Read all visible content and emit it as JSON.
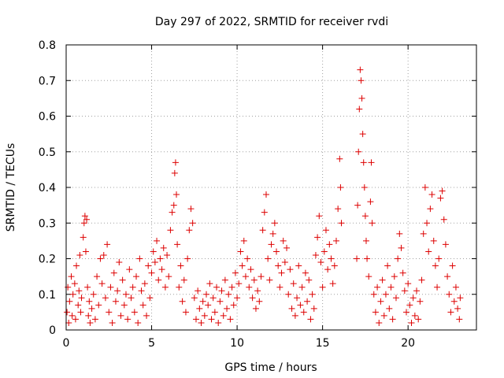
{
  "chart_data": {
    "type": "scatter",
    "title": "Day 297 of 2022, SRMTID for receiver rvdi",
    "xlabel": "GPS time / hours",
    "ylabel": "SRMTID / TECUs",
    "xlim": [
      0,
      24
    ],
    "ylim": [
      0,
      0.8
    ],
    "x_ticks": [
      0,
      5,
      10,
      15,
      20
    ],
    "x_tick_labels": [
      "0",
      "5",
      "10",
      "15",
      "20"
    ],
    "y_ticks": [
      0,
      0.1,
      0.2,
      0.3,
      0.4,
      0.5,
      0.6,
      0.7,
      0.8
    ],
    "y_tick_labels": [
      "0",
      "0.1",
      "0.2",
      "0.3",
      "0.4",
      "0.5",
      "0.6",
      "0.7",
      "0.8"
    ],
    "grid": true,
    "marker": "+",
    "marker_color": "#dd0000",
    "series": [
      {
        "name": "SRMTID",
        "points": [
          [
            0.05,
            0.05
          ],
          [
            0.1,
            0.12
          ],
          [
            0.15,
            0.02
          ],
          [
            0.2,
            0.08
          ],
          [
            0.3,
            0.15
          ],
          [
            0.35,
            0.04
          ],
          [
            0.4,
            0.1
          ],
          [
            0.5,
            0.13
          ],
          [
            0.55,
            0.03
          ],
          [
            0.6,
            0.18
          ],
          [
            0.7,
            0.07
          ],
          [
            0.75,
            0.11
          ],
          [
            0.8,
            0.21
          ],
          [
            0.85,
            0.05
          ],
          [
            0.9,
            0.09
          ],
          [
            1.0,
            0.26
          ],
          [
            1.05,
            0.3
          ],
          [
            1.1,
            0.32
          ],
          [
            1.15,
            0.22
          ],
          [
            1.2,
            0.31
          ],
          [
            1.25,
            0.12
          ],
          [
            1.3,
            0.04
          ],
          [
            1.35,
            0.08
          ],
          [
            1.4,
            0.02
          ],
          [
            1.5,
            0.06
          ],
          [
            1.6,
            0.1
          ],
          [
            1.7,
            0.03
          ],
          [
            1.8,
            0.15
          ],
          [
            1.9,
            0.07
          ],
          [
            2.0,
            0.2
          ],
          [
            2.1,
            0.13
          ],
          [
            2.2,
            0.21
          ],
          [
            2.3,
            0.09
          ],
          [
            2.4,
            0.24
          ],
          [
            2.5,
            0.05
          ],
          [
            2.6,
            0.12
          ],
          [
            2.7,
            0.02
          ],
          [
            2.8,
            0.16
          ],
          [
            2.9,
            0.08
          ],
          [
            3.0,
            0.11
          ],
          [
            3.1,
            0.19
          ],
          [
            3.2,
            0.04
          ],
          [
            3.3,
            0.14
          ],
          [
            3.4,
            0.07
          ],
          [
            3.5,
            0.1
          ],
          [
            3.6,
            0.03
          ],
          [
            3.7,
            0.17
          ],
          [
            3.8,
            0.09
          ],
          [
            3.9,
            0.12
          ],
          [
            4.0,
            0.05
          ],
          [
            4.1,
            0.15
          ],
          [
            4.2,
            0.02
          ],
          [
            4.3,
            0.2
          ],
          [
            4.4,
            0.11
          ],
          [
            4.5,
            0.07
          ],
          [
            4.6,
            0.13
          ],
          [
            4.7,
            0.04
          ],
          [
            4.8,
            0.18
          ],
          [
            4.9,
            0.09
          ],
          [
            5.0,
            0.16
          ],
          [
            5.1,
            0.22
          ],
          [
            5.2,
            0.19
          ],
          [
            5.3,
            0.25
          ],
          [
            5.4,
            0.14
          ],
          [
            5.5,
            0.2
          ],
          [
            5.6,
            0.17
          ],
          [
            5.7,
            0.23
          ],
          [
            5.8,
            0.12
          ],
          [
            5.9,
            0.21
          ],
          [
            6.0,
            0.15
          ],
          [
            6.1,
            0.28
          ],
          [
            6.2,
            0.33
          ],
          [
            6.3,
            0.35
          ],
          [
            6.35,
            0.44
          ],
          [
            6.4,
            0.47
          ],
          [
            6.45,
            0.38
          ],
          [
            6.5,
            0.24
          ],
          [
            6.6,
            0.12
          ],
          [
            6.7,
            0.18
          ],
          [
            6.8,
            0.08
          ],
          [
            6.9,
            0.14
          ],
          [
            7.0,
            0.05
          ],
          [
            7.1,
            0.2
          ],
          [
            7.2,
            0.28
          ],
          [
            7.3,
            0.34
          ],
          [
            7.4,
            0.3
          ],
          [
            7.5,
            0.09
          ],
          [
            7.6,
            0.03
          ],
          [
            7.7,
            0.11
          ],
          [
            7.8,
            0.06
          ],
          [
            7.9,
            0.02
          ],
          [
            8.0,
            0.08
          ],
          [
            8.1,
            0.04
          ],
          [
            8.2,
            0.1
          ],
          [
            8.3,
            0.07
          ],
          [
            8.4,
            0.13
          ],
          [
            8.5,
            0.03
          ],
          [
            8.6,
            0.09
          ],
          [
            8.7,
            0.05
          ],
          [
            8.8,
            0.12
          ],
          [
            8.9,
            0.02
          ],
          [
            9.0,
            0.08
          ],
          [
            9.1,
            0.11
          ],
          [
            9.2,
            0.04
          ],
          [
            9.3,
            0.14
          ],
          [
            9.4,
            0.06
          ],
          [
            9.5,
            0.1
          ],
          [
            9.6,
            0.03
          ],
          [
            9.7,
            0.12
          ],
          [
            9.8,
            0.07
          ],
          [
            9.9,
            0.16
          ],
          [
            10.0,
            0.09
          ],
          [
            10.1,
            0.13
          ],
          [
            10.2,
            0.22
          ],
          [
            10.3,
            0.18
          ],
          [
            10.4,
            0.25
          ],
          [
            10.5,
            0.15
          ],
          [
            10.6,
            0.2
          ],
          [
            10.7,
            0.12
          ],
          [
            10.8,
            0.17
          ],
          [
            10.9,
            0.09
          ],
          [
            11.0,
            0.14
          ],
          [
            11.1,
            0.06
          ],
          [
            11.2,
            0.11
          ],
          [
            11.3,
            0.08
          ],
          [
            11.4,
            0.15
          ],
          [
            11.5,
            0.28
          ],
          [
            11.6,
            0.33
          ],
          [
            11.7,
            0.38
          ],
          [
            11.8,
            0.2
          ],
          [
            11.9,
            0.14
          ],
          [
            12.0,
            0.24
          ],
          [
            12.1,
            0.27
          ],
          [
            12.2,
            0.3
          ],
          [
            12.3,
            0.22
          ],
          [
            12.4,
            0.18
          ],
          [
            12.5,
            0.12
          ],
          [
            12.6,
            0.16
          ],
          [
            12.7,
            0.25
          ],
          [
            12.8,
            0.19
          ],
          [
            12.9,
            0.23
          ],
          [
            13.0,
            0.1
          ],
          [
            13.1,
            0.17
          ],
          [
            13.2,
            0.06
          ],
          [
            13.3,
            0.13
          ],
          [
            13.4,
            0.04
          ],
          [
            13.5,
            0.09
          ],
          [
            13.6,
            0.18
          ],
          [
            13.7,
            0.07
          ],
          [
            13.8,
            0.12
          ],
          [
            13.9,
            0.05
          ],
          [
            14.0,
            0.16
          ],
          [
            14.1,
            0.08
          ],
          [
            14.2,
            0.14
          ],
          [
            14.3,
            0.03
          ],
          [
            14.4,
            0.1
          ],
          [
            14.5,
            0.06
          ],
          [
            14.6,
            0.21
          ],
          [
            14.7,
            0.26
          ],
          [
            14.8,
            0.32
          ],
          [
            14.9,
            0.19
          ],
          [
            15.0,
            0.12
          ],
          [
            15.1,
            0.22
          ],
          [
            15.2,
            0.28
          ],
          [
            15.3,
            0.17
          ],
          [
            15.4,
            0.24
          ],
          [
            15.5,
            0.2
          ],
          [
            15.6,
            0.13
          ],
          [
            15.7,
            0.18
          ],
          [
            15.8,
            0.25
          ],
          [
            15.9,
            0.34
          ],
          [
            16.0,
            0.48
          ],
          [
            16.05,
            0.4
          ],
          [
            16.1,
            0.3
          ],
          [
            17.0,
            0.2
          ],
          [
            17.05,
            0.35
          ],
          [
            17.1,
            0.5
          ],
          [
            17.15,
            0.62
          ],
          [
            17.2,
            0.73
          ],
          [
            17.25,
            0.7
          ],
          [
            17.3,
            0.65
          ],
          [
            17.35,
            0.55
          ],
          [
            17.4,
            0.47
          ],
          [
            17.45,
            0.4
          ],
          [
            17.5,
            0.32
          ],
          [
            17.55,
            0.25
          ],
          [
            17.6,
            0.2
          ],
          [
            17.7,
            0.15
          ],
          [
            17.8,
            0.36
          ],
          [
            17.85,
            0.47
          ],
          [
            17.9,
            0.3
          ],
          [
            18.0,
            0.1
          ],
          [
            18.1,
            0.05
          ],
          [
            18.2,
            0.12
          ],
          [
            18.3,
            0.02
          ],
          [
            18.4,
            0.08
          ],
          [
            18.5,
            0.14
          ],
          [
            18.6,
            0.04
          ],
          [
            18.7,
            0.1
          ],
          [
            18.8,
            0.18
          ],
          [
            18.9,
            0.06
          ],
          [
            19.0,
            0.12
          ],
          [
            19.1,
            0.03
          ],
          [
            19.2,
            0.15
          ],
          [
            19.3,
            0.09
          ],
          [
            19.4,
            0.2
          ],
          [
            19.5,
            0.27
          ],
          [
            19.6,
            0.23
          ],
          [
            19.7,
            0.16
          ],
          [
            19.8,
            0.11
          ],
          [
            19.9,
            0.05
          ],
          [
            20.0,
            0.13
          ],
          [
            20.1,
            0.07
          ],
          [
            20.2,
            0.02
          ],
          [
            20.3,
            0.09
          ],
          [
            20.4,
            0.04
          ],
          [
            20.5,
            0.11
          ],
          [
            20.6,
            0.03
          ],
          [
            20.7,
            0.08
          ],
          [
            20.8,
            0.14
          ],
          [
            20.9,
            0.27
          ],
          [
            21.0,
            0.4
          ],
          [
            21.1,
            0.3
          ],
          [
            21.2,
            0.22
          ],
          [
            21.3,
            0.34
          ],
          [
            21.4,
            0.38
          ],
          [
            21.5,
            0.25
          ],
          [
            21.6,
            0.18
          ],
          [
            21.7,
            0.12
          ],
          [
            21.8,
            0.2
          ],
          [
            21.9,
            0.37
          ],
          [
            22.0,
            0.39
          ],
          [
            22.1,
            0.31
          ],
          [
            22.2,
            0.24
          ],
          [
            22.3,
            0.15
          ],
          [
            22.4,
            0.1
          ],
          [
            22.5,
            0.05
          ],
          [
            22.6,
            0.18
          ],
          [
            22.7,
            0.08
          ],
          [
            22.8,
            0.12
          ],
          [
            22.9,
            0.06
          ],
          [
            23.0,
            0.03
          ],
          [
            23.05,
            0.09
          ]
        ]
      }
    ]
  }
}
